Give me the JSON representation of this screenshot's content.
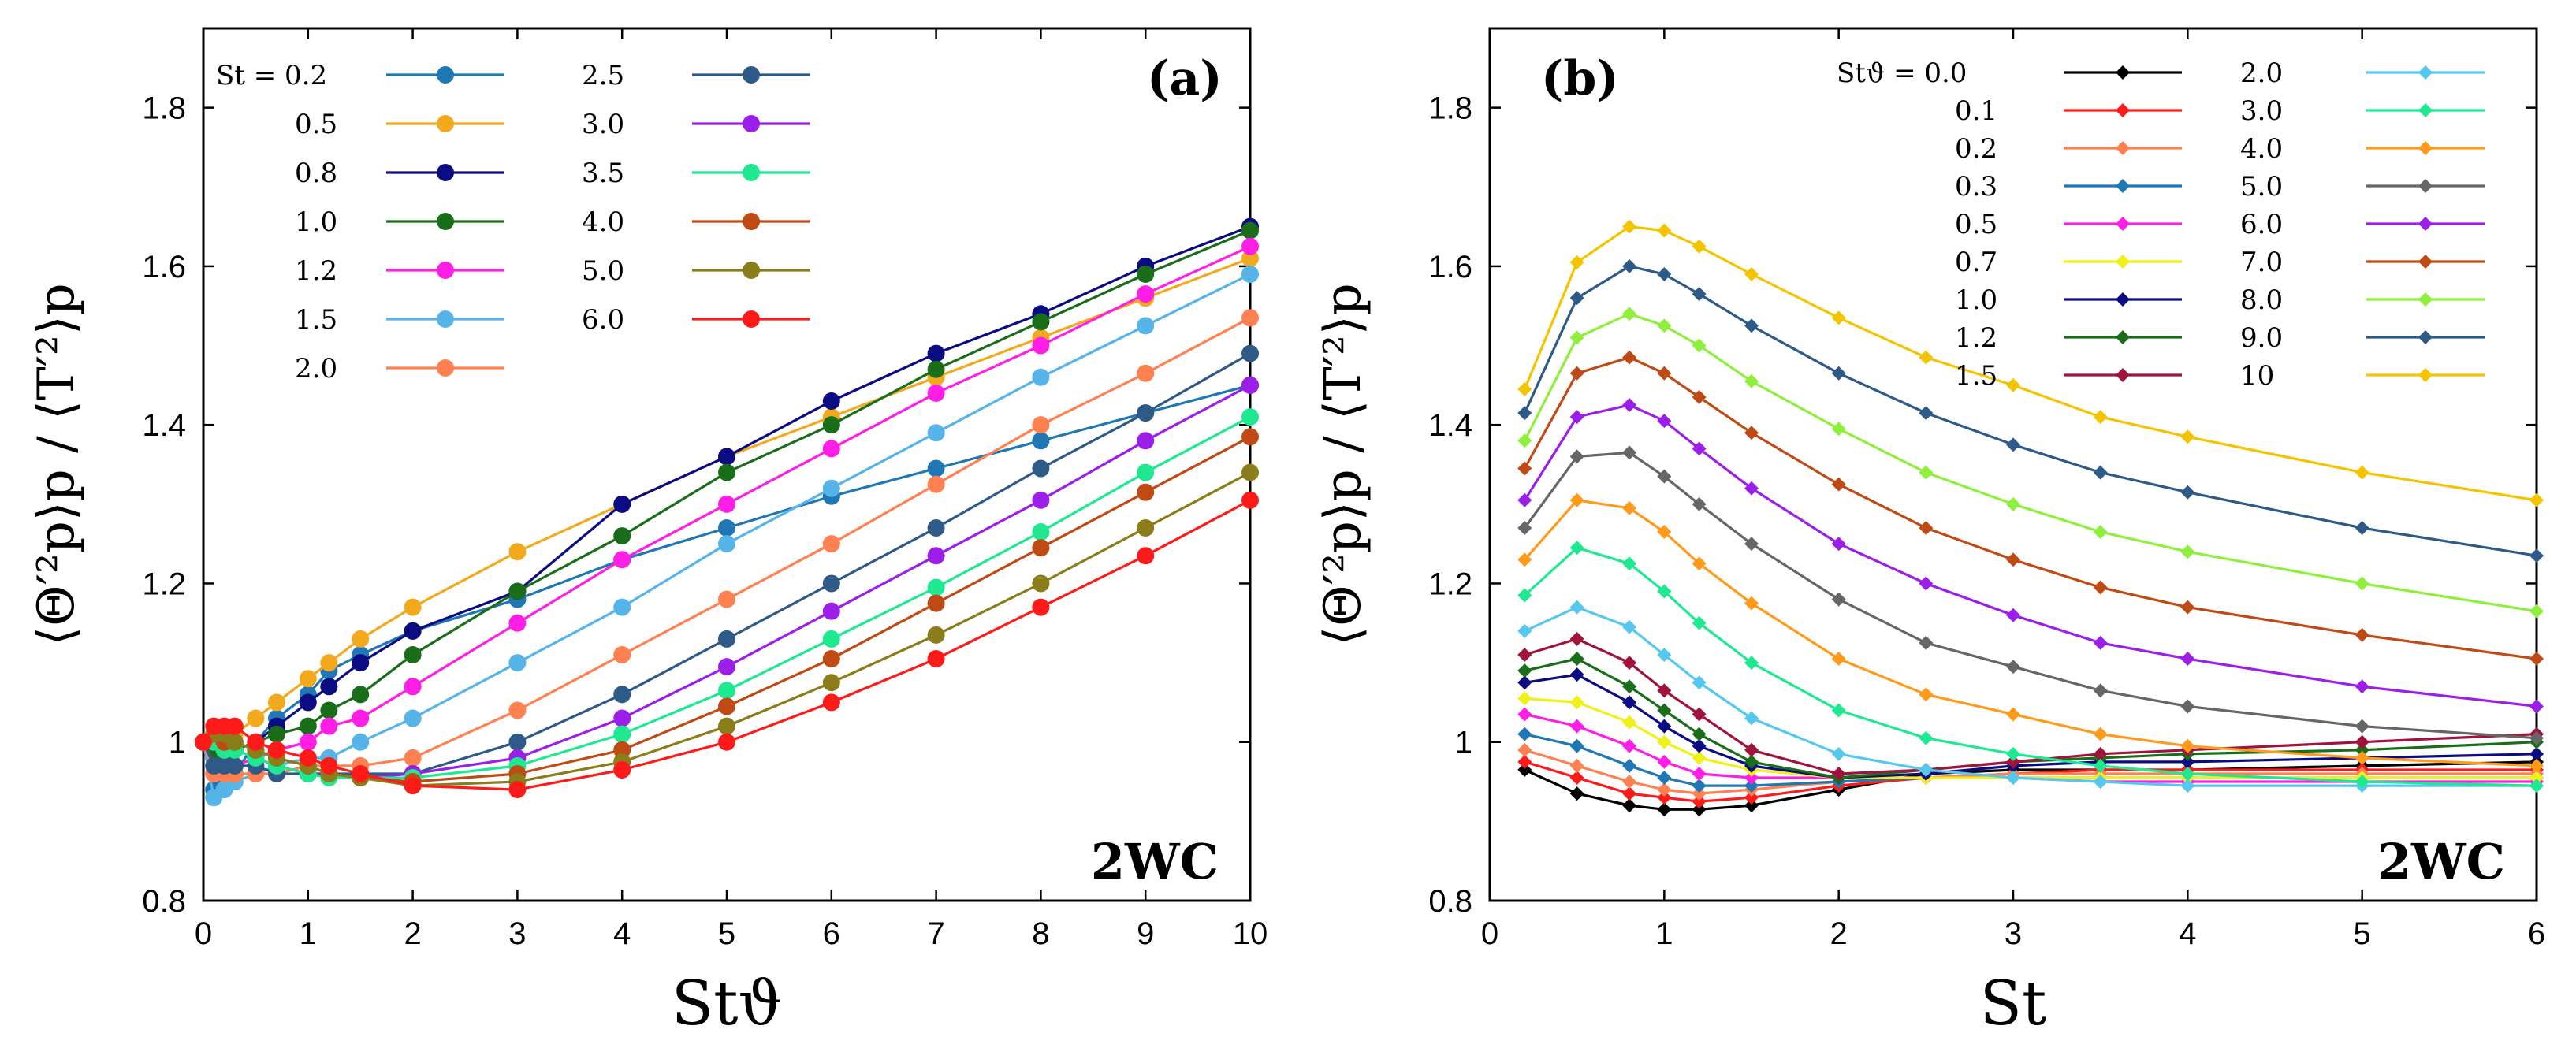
{
  "chart_data": [
    {
      "type": "line",
      "panel_label": "(a)",
      "annotation": "2WC",
      "xlabel": "Stϑ",
      "ylabel": "⟨Θ′²p⟩p / ⟨T′²⟩p",
      "xlim": [
        0,
        10
      ],
      "ylim": [
        0.8,
        1.9
      ],
      "xticks": [
        0,
        1,
        2,
        3,
        4,
        5,
        6,
        7,
        8,
        9,
        10
      ],
      "xtick_labels": [
        "0",
        "1",
        "2",
        "3",
        "4",
        "5",
        "6",
        "7",
        "8",
        "9",
        "10"
      ],
      "yticks": [
        0.8,
        1.0,
        1.2,
        1.4,
        1.6,
        1.8
      ],
      "ytick_labels": [
        "0.8",
        "1",
        "1.2",
        "1.4",
        "1.6",
        "1.8"
      ],
      "legend_title": "St = ",
      "legend_placement": "top-left",
      "x": [
        0,
        0.1,
        0.2,
        0.3,
        0.5,
        0.7,
        1.0,
        1.2,
        1.5,
        2,
        3,
        4,
        5,
        6,
        7,
        8,
        9,
        10
      ],
      "series": [
        {
          "name": "0.2",
          "color": "#1f77b4",
          "values": [
            1.0,
            0.94,
            0.95,
            0.96,
            1.0,
            1.03,
            1.06,
            1.09,
            1.11,
            1.14,
            1.18,
            1.23,
            1.27,
            1.31,
            1.345,
            1.38,
            1.415,
            1.45
          ]
        },
        {
          "name": "0.5",
          "color": "#f2a91e",
          "values": [
            1.0,
            0.99,
            1.0,
            1.01,
            1.03,
            1.05,
            1.08,
            1.1,
            1.13,
            1.17,
            1.24,
            1.3,
            1.36,
            1.41,
            1.46,
            1.51,
            1.56,
            1.61
          ]
        },
        {
          "name": "0.8",
          "color": "#0b0b82",
          "values": [
            1.0,
            0.98,
            0.98,
            0.99,
            1.0,
            1.02,
            1.05,
            1.07,
            1.1,
            1.14,
            1.19,
            1.3,
            1.36,
            1.43,
            1.49,
            1.54,
            1.6,
            1.65
          ]
        },
        {
          "name": "1.0",
          "color": "#1a6e1a",
          "values": [
            1.0,
            0.98,
            0.98,
            0.99,
            1.0,
            1.01,
            1.02,
            1.04,
            1.06,
            1.11,
            1.19,
            1.26,
            1.34,
            1.4,
            1.47,
            1.53,
            1.59,
            1.645
          ]
        },
        {
          "name": "1.2",
          "color": "#ff1ee6",
          "values": [
            1.0,
            0.97,
            0.97,
            0.97,
            0.98,
            0.99,
            1.0,
            1.02,
            1.03,
            1.07,
            1.15,
            1.23,
            1.3,
            1.37,
            1.44,
            1.5,
            1.565,
            1.625
          ]
        },
        {
          "name": "1.5",
          "color": "#56b4e9",
          "values": [
            1.0,
            0.93,
            0.94,
            0.95,
            0.96,
            0.97,
            0.98,
            0.98,
            1.0,
            1.03,
            1.1,
            1.17,
            1.25,
            1.32,
            1.39,
            1.46,
            1.525,
            1.59
          ]
        },
        {
          "name": "2.0",
          "color": "#ff8050",
          "values": [
            1.0,
            0.96,
            0.96,
            0.96,
            0.96,
            0.96,
            0.97,
            0.97,
            0.97,
            0.98,
            1.04,
            1.11,
            1.18,
            1.25,
            1.325,
            1.4,
            1.465,
            1.535
          ]
        },
        {
          "name": "2.5",
          "color": "#2e5a87",
          "values": [
            1.0,
            0.97,
            0.97,
            0.97,
            0.97,
            0.96,
            0.96,
            0.96,
            0.96,
            0.96,
            1.0,
            1.06,
            1.13,
            1.2,
            1.27,
            1.345,
            1.415,
            1.49
          ]
        },
        {
          "name": "3.0",
          "color": "#9b1fe8",
          "values": [
            1.0,
            1.0,
            0.99,
            0.99,
            0.98,
            0.97,
            0.96,
            0.96,
            0.955,
            0.96,
            0.98,
            1.03,
            1.095,
            1.165,
            1.235,
            1.305,
            1.38,
            1.45
          ]
        },
        {
          "name": "3.5",
          "color": "#1ee890",
          "values": [
            1.0,
            1.0,
            0.99,
            0.99,
            0.98,
            0.97,
            0.96,
            0.955,
            0.955,
            0.955,
            0.97,
            1.01,
            1.065,
            1.13,
            1.195,
            1.265,
            1.34,
            1.41
          ]
        },
        {
          "name": "4.0",
          "color": "#c04a14",
          "values": [
            1.0,
            1.01,
            1.0,
            1.0,
            0.99,
            0.98,
            0.97,
            0.96,
            0.955,
            0.95,
            0.96,
            0.99,
            1.045,
            1.105,
            1.175,
            1.245,
            1.315,
            1.385
          ]
        },
        {
          "name": "5.0",
          "color": "#8a7d1a",
          "values": [
            1.0,
            1.01,
            1.01,
            1.0,
            0.99,
            0.98,
            0.97,
            0.96,
            0.955,
            0.945,
            0.95,
            0.975,
            1.02,
            1.075,
            1.135,
            1.2,
            1.27,
            1.34
          ]
        },
        {
          "name": "6.0",
          "color": "#ff1a1a",
          "values": [
            1.0,
            1.02,
            1.02,
            1.02,
            1.0,
            0.99,
            0.98,
            0.97,
            0.96,
            0.945,
            0.94,
            0.965,
            1.0,
            1.05,
            1.105,
            1.17,
            1.235,
            1.305
          ]
        }
      ]
    },
    {
      "type": "line",
      "panel_label": "(b)",
      "annotation": "2WC",
      "xlabel": "St",
      "ylabel": "⟨Θ′²p⟩p / ⟨T′²⟩p",
      "xlim": [
        0,
        6
      ],
      "ylim": [
        0.8,
        1.9
      ],
      "xticks": [
        0,
        1,
        2,
        3,
        4,
        5,
        6
      ],
      "xtick_labels": [
        "0",
        "1",
        "2",
        "3",
        "4",
        "5",
        "6"
      ],
      "yticks": [
        0.8,
        1.0,
        1.2,
        1.4,
        1.6,
        1.8
      ],
      "ytick_labels": [
        "0.8",
        "1",
        "1.2",
        "1.4",
        "1.6",
        "1.8"
      ],
      "legend_title": "Stϑ = ",
      "legend_placement": "top-right",
      "x": [
        0.2,
        0.5,
        0.8,
        1.0,
        1.2,
        1.5,
        2.0,
        2.5,
        3.0,
        3.5,
        4.0,
        5.0,
        6.0
      ],
      "series": [
        {
          "name": "0.0",
          "color": "#000000",
          "values": [
            0.965,
            0.935,
            0.92,
            0.915,
            0.915,
            0.92,
            0.94,
            0.96,
            0.965,
            0.965,
            0.965,
            0.97,
            0.975
          ]
        },
        {
          "name": "0.1",
          "color": "#ff1a1a",
          "values": [
            0.975,
            0.955,
            0.935,
            0.93,
            0.925,
            0.93,
            0.945,
            0.955,
            0.96,
            0.965,
            0.965,
            0.965,
            0.965
          ]
        },
        {
          "name": "0.2",
          "color": "#ff8050",
          "values": [
            0.99,
            0.97,
            0.95,
            0.94,
            0.935,
            0.94,
            0.95,
            0.955,
            0.96,
            0.96,
            0.96,
            0.96,
            0.96
          ]
        },
        {
          "name": "0.3",
          "color": "#1f77b4",
          "values": [
            1.01,
            0.995,
            0.97,
            0.955,
            0.945,
            0.945,
            0.95,
            0.955,
            0.955,
            0.955,
            0.955,
            0.955,
            0.955
          ]
        },
        {
          "name": "0.5",
          "color": "#ff1ee6",
          "values": [
            1.035,
            1.02,
            0.995,
            0.975,
            0.96,
            0.955,
            0.955,
            0.955,
            0.955,
            0.95,
            0.95,
            0.95,
            0.95
          ]
        },
        {
          "name": "0.7",
          "color": "#f0f01a",
          "values": [
            1.055,
            1.05,
            1.025,
            1.0,
            0.98,
            0.965,
            0.955,
            0.955,
            0.955,
            0.955,
            0.955,
            0.955,
            0.955
          ]
        },
        {
          "name": "1.0",
          "color": "#0b0b82",
          "values": [
            1.075,
            1.085,
            1.05,
            1.02,
            0.995,
            0.97,
            0.955,
            0.96,
            0.97,
            0.975,
            0.975,
            0.98,
            0.985
          ]
        },
        {
          "name": "1.2",
          "color": "#1a6e1a",
          "values": [
            1.09,
            1.105,
            1.07,
            1.04,
            1.01,
            0.975,
            0.955,
            0.965,
            0.975,
            0.98,
            0.985,
            0.99,
            1.0
          ]
        },
        {
          "name": "1.5",
          "color": "#a0143c",
          "values": [
            1.11,
            1.13,
            1.1,
            1.065,
            1.035,
            0.99,
            0.96,
            0.965,
            0.975,
            0.985,
            0.99,
            1.0,
            1.01
          ]
        },
        {
          "name": "2.0",
          "color": "#56c8f0",
          "values": [
            1.14,
            1.17,
            1.145,
            1.11,
            1.075,
            1.03,
            0.985,
            0.965,
            0.955,
            0.95,
            0.945,
            0.945,
            0.945
          ]
        },
        {
          "name": "3.0",
          "color": "#1ee890",
          "values": [
            1.185,
            1.245,
            1.225,
            1.19,
            1.15,
            1.1,
            1.04,
            1.005,
            0.985,
            0.97,
            0.96,
            0.95,
            0.945
          ]
        },
        {
          "name": "4.0",
          "color": "#ff9a1a",
          "values": [
            1.23,
            1.305,
            1.295,
            1.265,
            1.225,
            1.175,
            1.105,
            1.06,
            1.035,
            1.01,
            0.995,
            0.98,
            0.97
          ]
        },
        {
          "name": "5.0",
          "color": "#666666",
          "values": [
            1.27,
            1.36,
            1.365,
            1.335,
            1.3,
            1.25,
            1.18,
            1.125,
            1.095,
            1.065,
            1.045,
            1.02,
            1.005
          ]
        },
        {
          "name": "6.0",
          "color": "#9b1fe8",
          "values": [
            1.305,
            1.41,
            1.425,
            1.405,
            1.37,
            1.32,
            1.25,
            1.2,
            1.16,
            1.125,
            1.105,
            1.07,
            1.045
          ]
        },
        {
          "name": "7.0",
          "color": "#c04a14",
          "values": [
            1.345,
            1.465,
            1.485,
            1.465,
            1.435,
            1.39,
            1.325,
            1.27,
            1.23,
            1.195,
            1.17,
            1.135,
            1.105
          ]
        },
        {
          "name": "8.0",
          "color": "#8ef03c",
          "values": [
            1.38,
            1.51,
            1.54,
            1.525,
            1.5,
            1.455,
            1.395,
            1.34,
            1.3,
            1.265,
            1.24,
            1.2,
            1.165
          ]
        },
        {
          "name": "9.0",
          "color": "#2e5a87",
          "values": [
            1.415,
            1.56,
            1.6,
            1.59,
            1.565,
            1.525,
            1.465,
            1.415,
            1.375,
            1.34,
            1.315,
            1.27,
            1.235
          ]
        },
        {
          "name": "10",
          "color": "#f5c400",
          "values": [
            1.445,
            1.605,
            1.65,
            1.645,
            1.625,
            1.59,
            1.535,
            1.485,
            1.45,
            1.41,
            1.385,
            1.34,
            1.305
          ]
        }
      ]
    }
  ]
}
